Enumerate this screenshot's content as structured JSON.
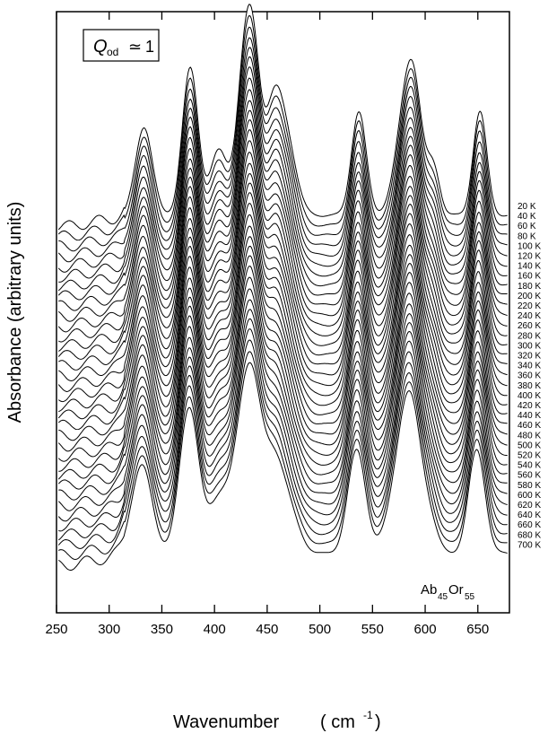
{
  "chart_data": {
    "type": "line",
    "style": "stacked waterfall spectra, constant vertical offset per temperature, black lines on white",
    "xlabel": "Wavenumber",
    "xlabel_unit": "( cm",
    "xlabel_unit_exp": "-1",
    "xlabel_unit_close": " )",
    "ylabel": "Absorbance (arbitrary units)",
    "xlim": [
      250,
      680
    ],
    "x_ticks": [
      250,
      300,
      350,
      400,
      450,
      500,
      550,
      600,
      650
    ],
    "x_tick_labels": [
      "250",
      "300",
      "350",
      "400",
      "450",
      "500",
      "550",
      "600",
      "650"
    ],
    "y_ticks_shown": false,
    "grid": false,
    "annotation_box": {
      "main": "Q",
      "sub": "od",
      "relation": "≃",
      "value": "1"
    },
    "sample_label": {
      "main": "Ab",
      "sub1": "45",
      "mid": "Or",
      "sub2": "55"
    },
    "trace_labels": [
      "20 K",
      "40 K",
      "60 K",
      "80 K",
      "100 K",
      "120 K",
      "140 K",
      "160 K",
      "180 K",
      "200 K",
      "220 K",
      "240 K",
      "260 K",
      "280 K",
      "300 K",
      "320 K",
      "340 K",
      "360 K",
      "380 K",
      "400 K",
      "420 K",
      "440 K",
      "460 K",
      "480 K",
      "500 K",
      "520 K",
      "540 K",
      "560 K",
      "580 K",
      "600 K",
      "620 K",
      "640 K",
      "660 K",
      "680 K",
      "700 K"
    ],
    "series_temperatures_K": [
      20,
      40,
      60,
      80,
      100,
      120,
      140,
      160,
      180,
      200,
      220,
      240,
      260,
      280,
      300,
      320,
      340,
      360,
      380,
      400,
      420,
      440,
      460,
      480,
      500,
      520,
      540,
      560,
      580,
      600,
      620,
      640,
      660,
      680,
      700
    ],
    "peaks_cm-1_at_20K": [
      {
        "position": 333,
        "rel_height": 0.47
      },
      {
        "position": 377,
        "rel_height": 0.78
      },
      {
        "position": 404,
        "rel_height": 0.34
      },
      {
        "position": 429,
        "rel_height": 0.77
      },
      {
        "position": 438,
        "rel_height": 0.55
      },
      {
        "position": 456,
        "rel_height": 0.52
      },
      {
        "position": 469,
        "rel_height": 0.36
      },
      {
        "position": 537,
        "rel_height": 0.55
      },
      {
        "position": 582,
        "rel_height": 0.52
      },
      {
        "position": 590,
        "rel_height": 0.4
      },
      {
        "position": 608,
        "rel_height": 0.24
      },
      {
        "position": 652,
        "rel_height": 0.55
      }
    ],
    "peaks_cm-1_at_700K": [
      {
        "position": 331,
        "rel_height": 0.47
      },
      {
        "position": 376,
        "rel_height": 0.78
      },
      {
        "position": 405,
        "rel_height": 0.29
      },
      {
        "position": 428,
        "rel_height": 0.66
      },
      {
        "position": 438,
        "rel_height": 0.48
      },
      {
        "position": 455,
        "rel_height": 0.4
      },
      {
        "position": 469,
        "rel_height": 0.22
      },
      {
        "position": 535,
        "rel_height": 0.55
      },
      {
        "position": 580,
        "rel_height": 0.52
      },
      {
        "position": 588,
        "rel_height": 0.4
      },
      {
        "position": 605,
        "rel_height": 0.12
      },
      {
        "position": 649,
        "rel_height": 0.55
      }
    ]
  }
}
